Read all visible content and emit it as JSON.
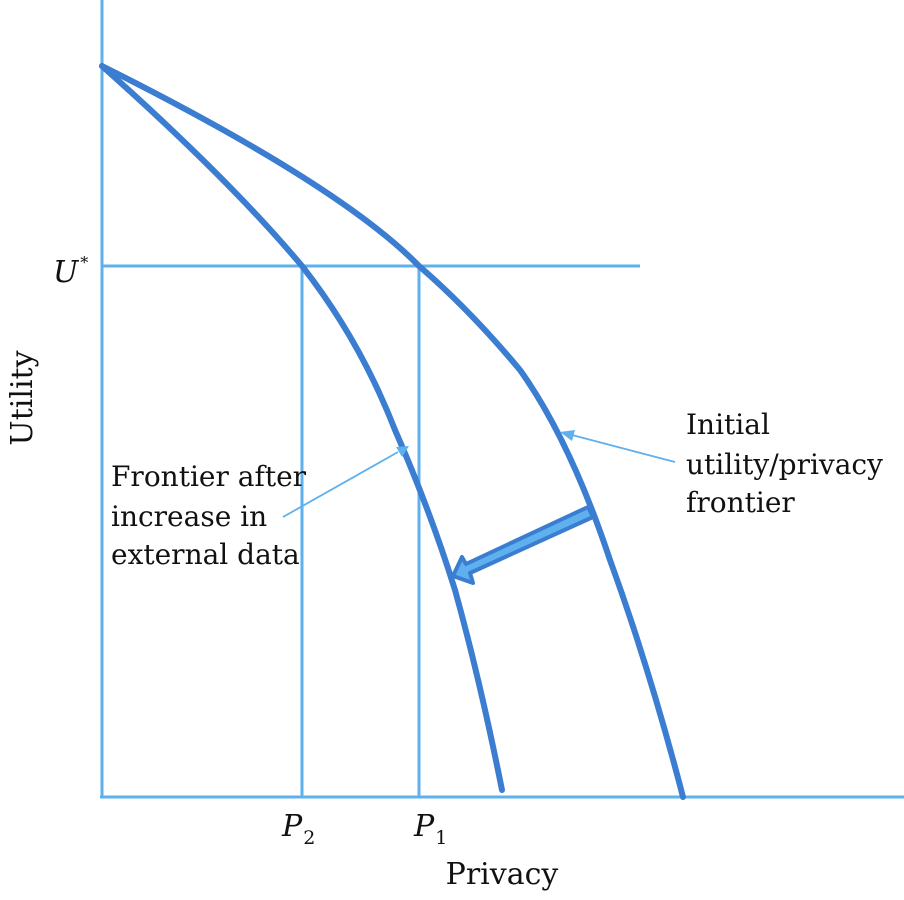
{
  "diagram": {
    "axes": {
      "x_label": "Privacy",
      "y_label": "Utility"
    },
    "markers": {
      "u_star": {
        "base": "U",
        "sup": "*"
      },
      "p1": {
        "base": "P",
        "sub": "1"
      },
      "p2": {
        "base": "P",
        "sub": "2"
      }
    },
    "annotations": {
      "initial_frontier": [
        "Initial",
        "utility/privacy",
        "frontier"
      ],
      "shifted_frontier": [
        "Frontier after",
        "increase in",
        "external data"
      ]
    },
    "colors": {
      "frontier": "#3b7dd0",
      "guide": "#5eb0ee",
      "shift_arrow_fill": "#5eb0ee",
      "shift_arrow_edge": "#3b7dd0"
    }
  }
}
